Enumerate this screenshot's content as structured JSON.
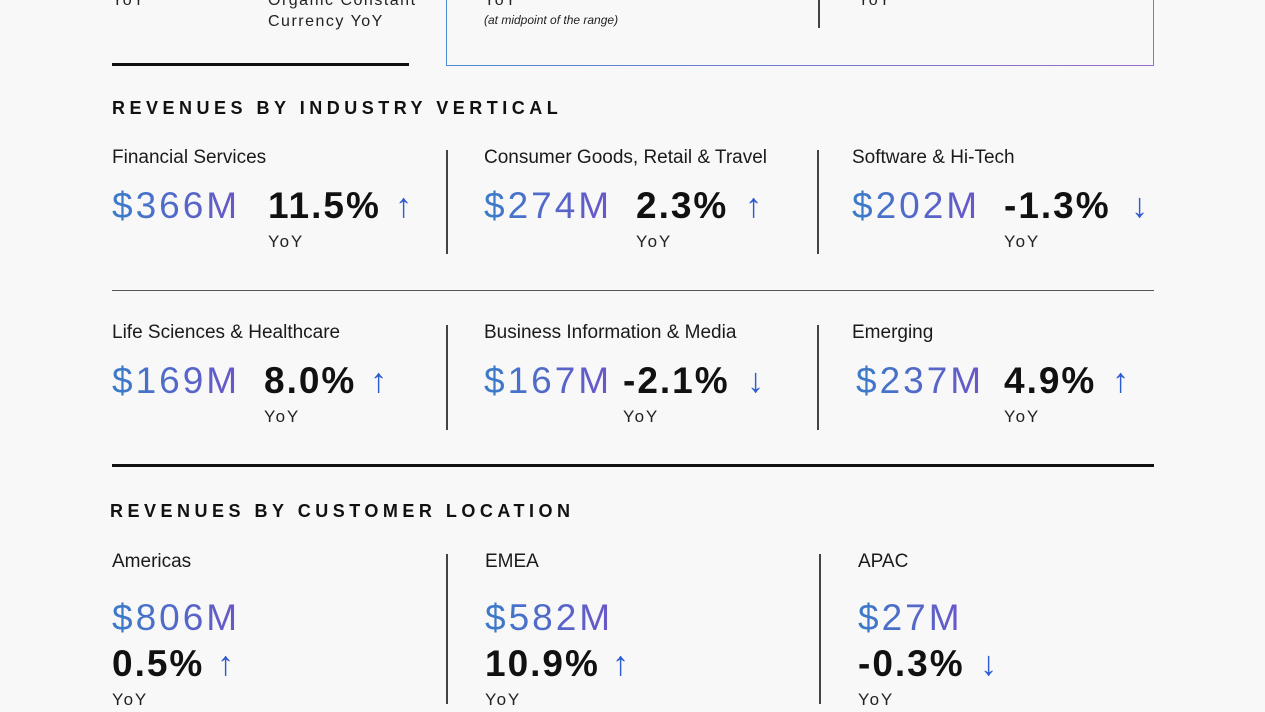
{
  "top": {
    "left_yoy": "YoY",
    "organic_line1": "Organic Constant",
    "organic_line2": "Currency YoY",
    "guidance_yoy": "YoY",
    "guidance_note": "(at midpoint of the range)",
    "right_yoy": "YoY"
  },
  "industry": {
    "title": "REVENUES BY INDUSTRY VERTICAL",
    "items": [
      {
        "name": "Financial Services",
        "amount": "$366M",
        "pct": "11.5%",
        "dir": "up",
        "yoy": "YoY"
      },
      {
        "name": "Consumer Goods, Retail & Travel",
        "amount": "$274M",
        "pct": "2.3%",
        "dir": "up",
        "yoy": "YoY"
      },
      {
        "name": "Software & Hi-Tech",
        "amount": "$202M",
        "pct": "-1.3%",
        "dir": "down",
        "yoy": "YoY"
      },
      {
        "name": "Life Sciences & Healthcare",
        "amount": "$169M",
        "pct": "8.0%",
        "dir": "up",
        "yoy": "YoY"
      },
      {
        "name": "Business Information & Media",
        "amount": "$167M",
        "pct": "-2.1%",
        "dir": "down",
        "yoy": "YoY"
      },
      {
        "name": "Emerging",
        "amount": "$237M",
        "pct": "4.9%",
        "dir": "up",
        "yoy": "YoY"
      }
    ]
  },
  "location": {
    "title": "REVENUES BY CUSTOMER LOCATION",
    "items": [
      {
        "name": "Americas",
        "amount": "$806M",
        "pct": "0.5%",
        "dir": "up",
        "yoy": "YoY"
      },
      {
        "name": "EMEA",
        "amount": "$582M",
        "pct": "10.9%",
        "dir": "up",
        "yoy": "YoY"
      },
      {
        "name": "APAC",
        "amount": "$27M",
        "pct": "-0.3%",
        "dir": "down",
        "yoy": "YoY"
      }
    ]
  },
  "icons": {
    "up": "arrow-up-icon",
    "down": "arrow-down-icon"
  },
  "colors": {
    "accent_blue": "#2d5bd2",
    "amount_gradient_start": "#3b7cc9",
    "amount_gradient_end": "#6a56c8"
  }
}
